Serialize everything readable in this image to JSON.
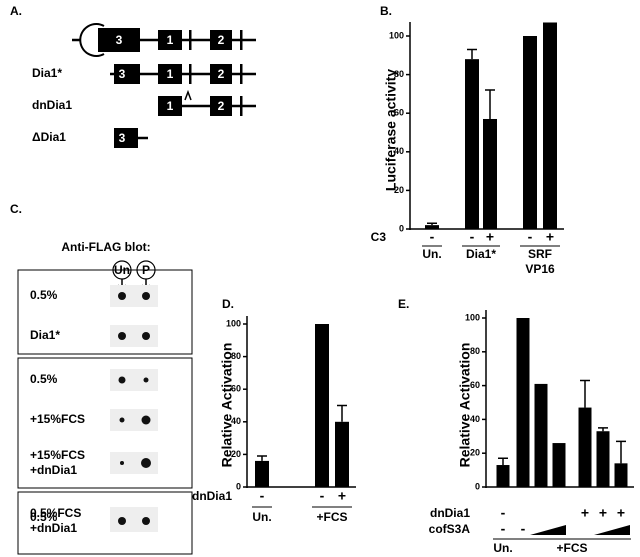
{
  "panel_a": {
    "label": "A.",
    "rows": [
      {
        "exons": [
          "3",
          "1",
          "2"
        ]
      },
      {
        "name": "Dia1*",
        "exons": [
          "3",
          "1",
          "2"
        ]
      },
      {
        "name": "dnDia1",
        "exons": [
          "1",
          "2"
        ]
      },
      {
        "name": "ΔDia1",
        "exons": [
          "3"
        ]
      }
    ]
  },
  "panel_c": {
    "label": "C.",
    "title": "Anti-FLAG blot:",
    "lanes": [
      "Un",
      "P"
    ],
    "boxes": [
      [
        [
          "0.5%"
        ],
        [
          "Dia1*"
        ]
      ],
      [
        [
          "0.5%"
        ],
        [
          "+15%FCS"
        ],
        [
          "+15%FCS",
          "+dnDia1"
        ]
      ],
      [
        [
          "0.5%"
        ],
        [
          "0.5%FCS",
          "+dnDia1"
        ]
      ]
    ]
  },
  "chart_data": [
    {
      "type": "bar",
      "panel_label": "B.",
      "ylabel": "Luciferase activity",
      "ylim": [
        0,
        100
      ],
      "yticks": [
        0,
        20,
        40,
        60,
        80,
        100
      ],
      "color": "#000000",
      "values": [
        2,
        88,
        57,
        100,
        107
      ],
      "errors": [
        1,
        5,
        15,
        null,
        null
      ],
      "rows": [
        {
          "name": "C3",
          "labels": [
            "-",
            "-",
            "+",
            "-",
            "+"
          ]
        }
      ],
      "groups": [
        [
          "Un."
        ],
        [
          "Dia1*"
        ],
        [
          "SRF",
          "VP16"
        ]
      ]
    },
    {
      "type": "bar",
      "panel_label": "D.",
      "ylabel": "Relative Activation",
      "ylim": [
        0,
        100
      ],
      "yticks": [
        0,
        20,
        40,
        60,
        80,
        100
      ],
      "color": "#000000",
      "values": [
        16,
        100,
        40
      ],
      "errors": [
        3,
        null,
        10
      ],
      "rows": [
        {
          "name": "dnDia1",
          "labels": [
            "-",
            "-",
            "+"
          ]
        }
      ],
      "groups": [
        [
          "Un."
        ],
        [
          "+FCS"
        ]
      ]
    },
    {
      "type": "bar",
      "panel_label": "E.",
      "ylabel": "Relative Activation",
      "ylim": [
        0,
        100
      ],
      "yticks": [
        0,
        20,
        40,
        60,
        80,
        100
      ],
      "color": "#000000",
      "values": [
        13,
        100,
        61,
        26,
        47,
        33,
        14
      ],
      "errors": [
        4,
        null,
        null,
        null,
        16,
        2,
        13
      ],
      "rows": [
        {
          "name": "dnDia1",
          "labels": [
            "-",
            null,
            null,
            null,
            "+",
            "+",
            "+"
          ]
        },
        {
          "name": "cofS3A",
          "labels": [
            "-",
            "-",
            null,
            null,
            null,
            null,
            null
          ]
        }
      ],
      "groups": [
        [
          "Un."
        ],
        [
          "+FCS"
        ]
      ]
    }
  ]
}
